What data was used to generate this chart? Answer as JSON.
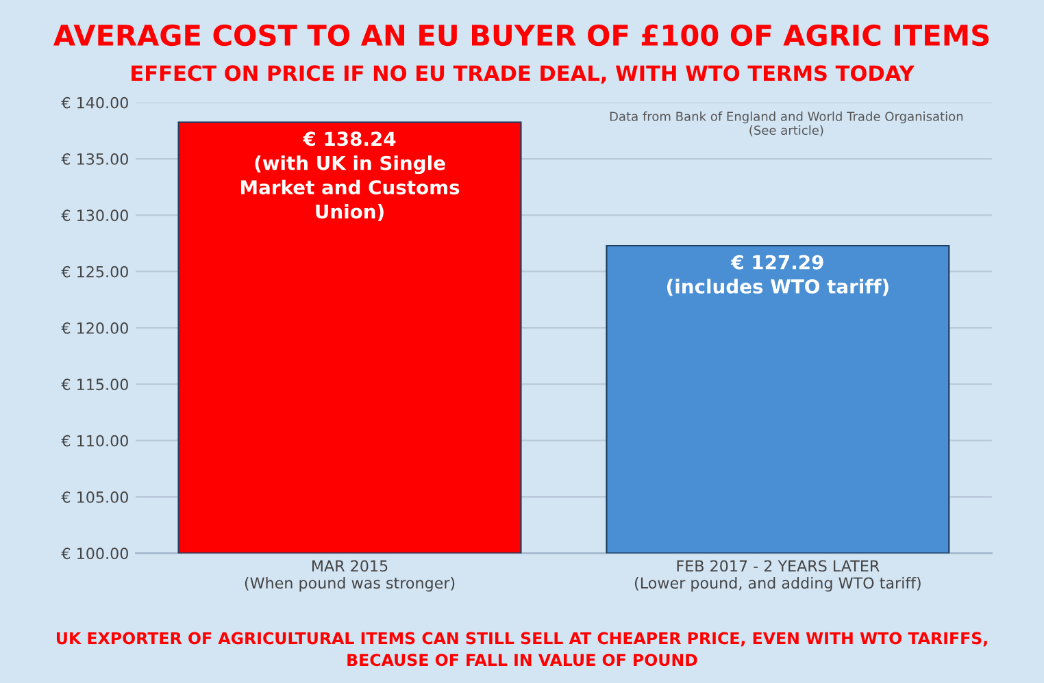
{
  "chart_data": {
    "type": "bar",
    "title": "AVERAGE COST TO AN EU BUYER OF £100 OF AGRIC ITEMS",
    "subtitle": "EFFECT ON PRICE IF NO EU TRADE DEAL, WITH WTO TERMS TODAY",
    "categories": [
      "MAR 2015\n(When pound was stronger)",
      "FEB 2017 - 2 YEARS LATER\n(Lower pound, and adding WTO tariff)"
    ],
    "values": [
      138.24,
      127.29
    ],
    "colors": [
      "#ff0000",
      "#4a8fd4"
    ],
    "value_labels": [
      "€ 138.24\n(with UK in Single\nMarket and Customs\nUnion)",
      "€ 127.29\n(includes WTO tariff)"
    ],
    "ylim": [
      100,
      140
    ],
    "yticks": [
      {
        "value": 100,
        "label": "€ 100.00"
      },
      {
        "value": 105,
        "label": "€ 105.00"
      },
      {
        "value": 110,
        "label": "€ 110.00"
      },
      {
        "value": 115,
        "label": "€ 115.00"
      },
      {
        "value": 120,
        "label": "€ 120.00"
      },
      {
        "value": 125,
        "label": "€ 125.00"
      },
      {
        "value": 130,
        "label": "€ 130.00"
      },
      {
        "value": 135,
        "label": "€ 135.00"
      },
      {
        "value": 140,
        "label": "€ 140.00"
      }
    ],
    "grid": "y",
    "annotations": [
      "Data from Bank of England and World Trade Organisation\n(See article)",
      "UK EXPORTER OF AGRICULTURAL ITEMS CAN STILL SELL AT CHEAPER PRICE, EVEN WITH WTO TARIFFS,\nBECAUSE OF FALL IN VALUE OF POUND"
    ]
  }
}
